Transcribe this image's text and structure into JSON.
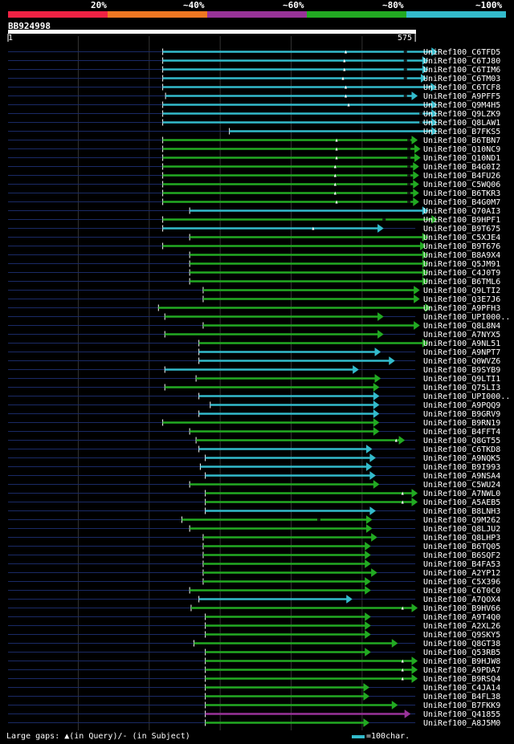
{
  "chart_data": {
    "type": "alignment-map",
    "query": {
      "name": "BB924998",
      "start": 1,
      "end": 575
    },
    "legend": [
      {
        "label": "20%",
        "color": "#ee2244"
      },
      {
        "label": "~40%",
        "color": "#ee7722"
      },
      {
        "label": "~60%",
        "color": "#993399"
      },
      {
        "label": "~80%",
        "color": "#22aa22"
      },
      {
        "label": "~100%",
        "color": "#33bbcc"
      }
    ],
    "grid_positions": [
      100,
      200,
      300,
      400,
      500
    ],
    "footer": "Large gaps: ▲(in Query)/- (in Subject)",
    "scale_label": "=100char.",
    "hits": [
      {
        "label": "UniRef100_C6TFD5",
        "start": 219,
        "end": 606,
        "cls": "c",
        "gaps": [
          [
            477,
            "q"
          ],
          [
            561,
            "s"
          ]
        ]
      },
      {
        "label": "UniRef100_C6TJ80",
        "start": 219,
        "end": 593,
        "cls": "c",
        "gaps": [
          [
            475,
            "q"
          ],
          [
            561,
            "s"
          ]
        ]
      },
      {
        "label": "UniRef100_C6TIM6",
        "start": 219,
        "end": 593,
        "cls": "c",
        "gaps": [
          [
            475,
            "q"
          ],
          [
            561,
            "s"
          ]
        ]
      },
      {
        "label": "UniRef100_C6TM03",
        "start": 219,
        "end": 591,
        "cls": "c",
        "gaps": [
          [
            473,
            "q"
          ],
          [
            561,
            "s"
          ]
        ]
      },
      {
        "label": "UniRef100_C6TCF8",
        "start": 219,
        "end": 605,
        "cls": "c",
        "gaps": [
          [
            477,
            "q"
          ]
        ]
      },
      {
        "label": "UniRef100_A9PFF5",
        "start": 223,
        "end": 578,
        "cls": "c",
        "gaps": [
          [
            477,
            "q"
          ],
          [
            561,
            "s"
          ]
        ]
      },
      {
        "label": "UniRef100_Q9M4H5",
        "start": 219,
        "end": 606,
        "cls": "c",
        "gaps": [
          [
            481,
            "q"
          ]
        ]
      },
      {
        "label": "UniRef100_Q9LZK9",
        "start": 219,
        "end": 606,
        "cls": "c",
        "gaps": [
          [
            583,
            "s"
          ]
        ]
      },
      {
        "label": "UniRef100_Q8LAW1",
        "start": 219,
        "end": 606,
        "cls": "c",
        "gaps": [
          [
            583,
            "s"
          ]
        ]
      },
      {
        "label": "UniRef100_B7FKS5",
        "start": 313,
        "end": 606,
        "cls": "c",
        "gaps": []
      },
      {
        "label": "UniRef100_B6TBN7",
        "start": 219,
        "end": 578,
        "cls": "g",
        "gaps": [
          [
            464,
            "q"
          ],
          [
            566,
            "s"
          ]
        ]
      },
      {
        "label": "UniRef100_Q10NC9",
        "start": 219,
        "end": 582,
        "cls": "g",
        "gaps": [
          [
            464,
            "q"
          ],
          [
            566,
            "s"
          ]
        ]
      },
      {
        "label": "UniRef100_Q10ND1",
        "start": 219,
        "end": 582,
        "cls": "g",
        "gaps": [
          [
            464,
            "q"
          ],
          [
            566,
            "s"
          ]
        ]
      },
      {
        "label": "UniRef100_B4G0I2",
        "start": 219,
        "end": 580,
        "cls": "g",
        "gaps": [
          [
            462,
            "q"
          ],
          [
            566,
            "s"
          ]
        ]
      },
      {
        "label": "UniRef100_B4FU26",
        "start": 219,
        "end": 580,
        "cls": "g",
        "gaps": [
          [
            462,
            "q"
          ],
          [
            566,
            "s"
          ]
        ]
      },
      {
        "label": "UniRef100_C5WQ06",
        "start": 219,
        "end": 580,
        "cls": "g",
        "gaps": [
          [
            462,
            "q"
          ],
          [
            566,
            "s"
          ]
        ]
      },
      {
        "label": "UniRef100_B6TKR3",
        "start": 219,
        "end": 580,
        "cls": "g",
        "gaps": [
          [
            462,
            "q"
          ],
          [
            566,
            "s"
          ]
        ]
      },
      {
        "label": "UniRef100_B4G0M7",
        "start": 219,
        "end": 580,
        "cls": "g",
        "gaps": [
          [
            464,
            "q"
          ],
          [
            566,
            "s"
          ]
        ]
      },
      {
        "label": "UniRef100_Q70AI3",
        "start": 257,
        "end": 593,
        "cls": "c",
        "gaps": []
      },
      {
        "label": "UniRef100_B9HPF1",
        "start": 219,
        "end": 606,
        "cls": "g",
        "gaps": [
          [
            531,
            "s"
          ]
        ]
      },
      {
        "label": "UniRef100_B9T675",
        "start": 219,
        "end": 530,
        "cls": "c",
        "gaps": [
          [
            431,
            "q"
          ]
        ]
      },
      {
        "label": "UniRef100_C5XJE4",
        "start": 257,
        "end": 593,
        "cls": "g",
        "gaps": []
      },
      {
        "label": "UniRef100_B9T676",
        "start": 219,
        "end": 590,
        "cls": "g",
        "gaps": []
      },
      {
        "label": "UniRef100_B8A9X4",
        "start": 257,
        "end": 593,
        "cls": "g",
        "gaps": []
      },
      {
        "label": "UniRef100_Q5JM91",
        "start": 257,
        "end": 593,
        "cls": "g",
        "gaps": []
      },
      {
        "label": "UniRef100_C4J0T9",
        "start": 257,
        "end": 593,
        "cls": "g",
        "gaps": []
      },
      {
        "label": "UniRef100_B6TML6",
        "start": 257,
        "end": 593,
        "cls": "g",
        "gaps": []
      },
      {
        "label": "UniRef100_Q9LTI2",
        "start": 276,
        "end": 581,
        "cls": "g",
        "gaps": []
      },
      {
        "label": "UniRef100_Q3E7J6",
        "start": 276,
        "end": 581,
        "cls": "g",
        "gaps": []
      },
      {
        "label": "UniRef100_A9PFH3",
        "start": 213,
        "end": 597,
        "cls": "g",
        "gaps": []
      },
      {
        "label": "UniRef100_UPI000..",
        "start": 222,
        "end": 530,
        "cls": "g",
        "gaps": []
      },
      {
        "label": "UniRef100_Q8L8N4",
        "start": 276,
        "end": 581,
        "cls": "g",
        "gaps": []
      },
      {
        "label": "UniRef100_A7NYX5",
        "start": 222,
        "end": 530,
        "cls": "g",
        "gaps": []
      },
      {
        "label": "UniRef100_A9NL51",
        "start": 270,
        "end": 593,
        "cls": "g",
        "gaps": []
      },
      {
        "label": "UniRef100_A9NPT7",
        "start": 270,
        "end": 526,
        "cls": "c",
        "gaps": []
      },
      {
        "label": "UniRef100_Q0WVZ6",
        "start": 270,
        "end": 546,
        "cls": "c",
        "gaps": []
      },
      {
        "label": "UniRef100_B9SYB9",
        "start": 222,
        "end": 495,
        "cls": "c",
        "gaps": []
      },
      {
        "label": "UniRef100_Q9LTI1",
        "start": 266,
        "end": 526,
        "cls": "g",
        "gaps": []
      },
      {
        "label": "UniRef100_Q75LI3",
        "start": 222,
        "end": 524,
        "cls": "g",
        "gaps": []
      },
      {
        "label": "UniRef100_UPI000..",
        "start": 270,
        "end": 524,
        "cls": "c",
        "gaps": []
      },
      {
        "label": "UniRef100_A9PQQ9",
        "start": 286,
        "end": 524,
        "cls": "c",
        "gaps": []
      },
      {
        "label": "UniRef100_B9GRV9",
        "start": 270,
        "end": 524,
        "cls": "c",
        "gaps": []
      },
      {
        "label": "UniRef100_B9RN19",
        "start": 219,
        "end": 524,
        "cls": "g",
        "gaps": []
      },
      {
        "label": "UniRef100_B4FFT4",
        "start": 257,
        "end": 524,
        "cls": "g",
        "gaps": []
      },
      {
        "label": "UniRef100_Q8GT55",
        "start": 266,
        "end": 560,
        "cls": "g",
        "gaps": [
          [
            548,
            "q"
          ]
        ]
      },
      {
        "label": "UniRef100_C6TKD8",
        "start": 270,
        "end": 514,
        "cls": "c",
        "gaps": []
      },
      {
        "label": "UniRef100_A9NQK5",
        "start": 279,
        "end": 519,
        "cls": "c",
        "gaps": []
      },
      {
        "label": "UniRef100_B9I993",
        "start": 272,
        "end": 514,
        "cls": "c",
        "gaps": []
      },
      {
        "label": "UniRef100_A9NSA4",
        "start": 279,
        "end": 519,
        "cls": "c",
        "gaps": []
      },
      {
        "label": "UniRef100_C5WU24",
        "start": 257,
        "end": 524,
        "cls": "g",
        "gaps": []
      },
      {
        "label": "UniRef100_A7NWL0",
        "start": 279,
        "end": 578,
        "cls": "g",
        "gaps": [
          [
            557,
            "q"
          ]
        ]
      },
      {
        "label": "UniRef100_A5AEB5",
        "start": 279,
        "end": 578,
        "cls": "g",
        "gaps": [
          [
            557,
            "q"
          ]
        ]
      },
      {
        "label": "UniRef100_B8LNH3",
        "start": 279,
        "end": 519,
        "cls": "c",
        "gaps": []
      },
      {
        "label": "UniRef100_Q9M262",
        "start": 246,
        "end": 514,
        "cls": "g",
        "gaps": [
          [
            439,
            "s"
          ]
        ]
      },
      {
        "label": "UniRef100_Q8LJU2",
        "start": 257,
        "end": 514,
        "cls": "g",
        "gaps": []
      },
      {
        "label": "UniRef100_Q8LHP3",
        "start": 276,
        "end": 521,
        "cls": "g",
        "gaps": []
      },
      {
        "label": "UniRef100_B6TQ05",
        "start": 276,
        "end": 512,
        "cls": "g",
        "gaps": []
      },
      {
        "label": "UniRef100_B6SQF2",
        "start": 276,
        "end": 512,
        "cls": "g",
        "gaps": []
      },
      {
        "label": "UniRef100_B4FA53",
        "start": 276,
        "end": 512,
        "cls": "g",
        "gaps": []
      },
      {
        "label": "UniRef100_A2YP12",
        "start": 276,
        "end": 521,
        "cls": "g",
        "gaps": []
      },
      {
        "label": "UniRef100_C5X396",
        "start": 276,
        "end": 512,
        "cls": "g",
        "gaps": []
      },
      {
        "label": "UniRef100_C6T0C0",
        "start": 257,
        "end": 512,
        "cls": "g",
        "gaps": []
      },
      {
        "label": "UniRef100_A7QOX4",
        "start": 270,
        "end": 486,
        "cls": "c",
        "gaps": []
      },
      {
        "label": "UniRef100_B9HV66",
        "start": 259,
        "end": 578,
        "cls": "g",
        "gaps": [
          [
            557,
            "q"
          ]
        ]
      },
      {
        "label": "UniRef100_A9T4Q0",
        "start": 279,
        "end": 512,
        "cls": "g",
        "gaps": []
      },
      {
        "label": "UniRef100_A2XL26",
        "start": 279,
        "end": 512,
        "cls": "g",
        "gaps": []
      },
      {
        "label": "UniRef100_Q9SKY5",
        "start": 279,
        "end": 512,
        "cls": "g",
        "gaps": []
      },
      {
        "label": "UniRef100_Q8GT38",
        "start": 263,
        "end": 550,
        "cls": "g",
        "gaps": []
      },
      {
        "label": "UniRef100_Q53RB5",
        "start": 279,
        "end": 512,
        "cls": "g",
        "gaps": []
      },
      {
        "label": "UniRef100_B9HJW8",
        "start": 279,
        "end": 578,
        "cls": "g",
        "gaps": [
          [
            557,
            "q"
          ]
        ]
      },
      {
        "label": "UniRef100_A9PDA7",
        "start": 279,
        "end": 578,
        "cls": "g",
        "gaps": [
          [
            557,
            "q"
          ]
        ]
      },
      {
        "label": "UniRef100_B9RSQ4",
        "start": 279,
        "end": 578,
        "cls": "g",
        "gaps": [
          [
            557,
            "q"
          ]
        ]
      },
      {
        "label": "UniRef100_C4JA14",
        "start": 279,
        "end": 510,
        "cls": "g",
        "gaps": []
      },
      {
        "label": "UniRef100_B4FL38",
        "start": 279,
        "end": 510,
        "cls": "g",
        "gaps": []
      },
      {
        "label": "UniRef100_B7FKK9",
        "start": 279,
        "end": 550,
        "cls": "g",
        "gaps": []
      },
      {
        "label": "UniRef100_Q41855",
        "start": 279,
        "end": 568,
        "cls": "p",
        "gaps": []
      },
      {
        "label": "UniRef100_A8J5M0",
        "start": 279,
        "end": 510,
        "cls": "g",
        "gaps": []
      }
    ]
  }
}
